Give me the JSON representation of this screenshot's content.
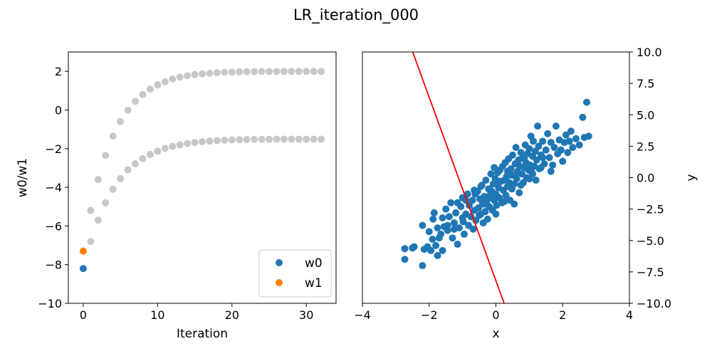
{
  "title": "LR_iteration_000",
  "colors": {
    "w0": "#1f77b4",
    "w1": "#ff7f0e",
    "history": "#c8c8c8",
    "fit_line": "#ff0000",
    "scatter": "#1f77b4"
  },
  "chart_data": [
    {
      "type": "scatter",
      "xlabel": "Iteration",
      "ylabel": "w0/w1",
      "xlim": [
        -2,
        34
      ],
      "ylim": [
        -10,
        3
      ],
      "xticks": [
        0,
        10,
        20,
        30
      ],
      "yticks": [
        -10,
        -8,
        -6,
        -4,
        -2,
        0,
        2
      ],
      "xtick_labels": [
        "0",
        "10",
        "20",
        "30"
      ],
      "ytick_labels": [
        "−10",
        "−8",
        "−6",
        "−4",
        "−2",
        "0",
        "2"
      ],
      "legend": {
        "placement": "lower-right",
        "entries": [
          "w0",
          "w1"
        ]
      },
      "grid": false,
      "series": [
        {
          "name": "w0",
          "style": "current",
          "x": [
            0
          ],
          "y": [
            -8.2
          ]
        },
        {
          "name": "w1",
          "style": "current",
          "x": [
            0
          ],
          "y": [
            -7.3
          ]
        },
        {
          "style": "history",
          "x": [
            1,
            2,
            3,
            4,
            5,
            6,
            7,
            8,
            9,
            10,
            11,
            12,
            13,
            14,
            15,
            16,
            17,
            18,
            19,
            20,
            21,
            22,
            23,
            24,
            25,
            26,
            27,
            28,
            29,
            30,
            31,
            32
          ],
          "y": [
            -5.2,
            -3.6,
            -2.35,
            -1.35,
            -0.6,
            -0.01,
            0.45,
            0.8,
            1.08,
            1.3,
            1.46,
            1.6,
            1.7,
            1.77,
            1.83,
            1.87,
            1.9,
            1.93,
            1.95,
            1.96,
            1.97,
            1.98,
            1.985,
            1.99,
            1.99,
            1.99,
            1.995,
            1.995,
            1.995,
            1.995,
            1.995,
            1.995
          ]
        },
        {
          "style": "history",
          "x": [
            1,
            2,
            3,
            4,
            5,
            6,
            7,
            8,
            9,
            10,
            11,
            12,
            13,
            14,
            15,
            16,
            17,
            18,
            19,
            20,
            21,
            22,
            23,
            24,
            25,
            26,
            27,
            28,
            29,
            30,
            31,
            32
          ],
          "y": [
            -6.8,
            -5.7,
            -4.8,
            -4.1,
            -3.55,
            -3.1,
            -2.78,
            -2.52,
            -2.3,
            -2.13,
            -1.99,
            -1.88,
            -1.8,
            -1.73,
            -1.68,
            -1.64,
            -1.61,
            -1.58,
            -1.56,
            -1.55,
            -1.54,
            -1.53,
            -1.525,
            -1.52,
            -1.515,
            -1.51,
            -1.51,
            -1.51,
            -1.51,
            -1.51,
            -1.51,
            -1.51
          ]
        }
      ]
    },
    {
      "type": "scatter",
      "xlabel": "x",
      "ylabel": "y",
      "xlim": [
        -4,
        4
      ],
      "ylim": [
        -10,
        10
      ],
      "xticks": [
        -4,
        -2,
        0,
        2,
        4
      ],
      "yticks": [
        -10,
        -7.5,
        -5,
        -2.5,
        0,
        2.5,
        5,
        7.5,
        10
      ],
      "xtick_labels": [
        "−4",
        "−2",
        "0",
        "2",
        "4"
      ],
      "ytick_labels": [
        "−10.0",
        "−7.5",
        "−5.0",
        "−2.5",
        "0.0",
        "2.5",
        "5.0",
        "7.5",
        "10.0"
      ],
      "y_axis_side": "right",
      "grid": false,
      "fit_line": {
        "slope": -7.3,
        "intercept": -8.2
      },
      "points": [
        [
          -2.73,
          -5.65
        ],
        [
          -2.73,
          -6.5
        ],
        [
          -2.5,
          -5.6
        ],
        [
          -2.45,
          -5.5
        ],
        [
          -2.2,
          -7.0
        ],
        [
          -2.15,
          -5.7
        ],
        [
          -2.2,
          -3.8
        ],
        [
          -2.05,
          -5.5
        ],
        [
          -1.95,
          -5.8
        ],
        [
          -1.9,
          -4.9
        ],
        [
          -1.88,
          -3.3
        ],
        [
          -1.85,
          -2.8
        ],
        [
          -1.8,
          -5.4
        ],
        [
          -1.75,
          -6.2
        ],
        [
          -1.7,
          -4.8
        ],
        [
          -1.65,
          -4.5
        ],
        [
          -1.6,
          -5.8
        ],
        [
          -1.55,
          -3.9
        ],
        [
          -1.5,
          -2.5
        ],
        [
          -1.45,
          -4.2
        ],
        [
          -1.4,
          -3.1
        ],
        [
          -1.35,
          -2.0
        ],
        [
          -1.3,
          -4.8
        ],
        [
          -1.25,
          -3.6
        ],
        [
          -1.2,
          -2.8
        ],
        [
          -1.15,
          -5.3
        ],
        [
          -1.1,
          -4.0
        ],
        [
          -1.05,
          -2.3
        ],
        [
          -1.0,
          -1.6
        ],
        [
          -0.98,
          -3.5
        ],
        [
          -0.95,
          -4.5
        ],
        [
          -0.9,
          -2.9
        ],
        [
          -0.85,
          -1.3
        ],
        [
          -0.82,
          -3.8
        ],
        [
          -0.8,
          -2.2
        ],
        [
          -0.75,
          -3.1
        ],
        [
          -0.7,
          -1.8
        ],
        [
          -0.68,
          -4.1
        ],
        [
          -0.65,
          -2.6
        ],
        [
          -0.6,
          -3.4
        ],
        [
          -0.55,
          -1.1
        ],
        [
          -0.52,
          -2.4
        ],
        [
          -0.5,
          -3.0
        ],
        [
          -0.48,
          -1.7
        ],
        [
          -0.45,
          -2.9
        ],
        [
          -0.42,
          -0.6
        ],
        [
          -0.4,
          -2.1
        ],
        [
          -0.38,
          -3.6
        ],
        [
          -0.35,
          -1.5
        ],
        [
          -0.32,
          -2.7
        ],
        [
          -0.3,
          -0.2
        ],
        [
          -0.28,
          -1.9
        ],
        [
          -0.25,
          -3.3
        ],
        [
          -0.22,
          -0.9
        ],
        [
          -0.2,
          -2.3
        ],
        [
          -0.18,
          -1.4
        ],
        [
          -0.15,
          0.3
        ],
        [
          -0.12,
          -1.1
        ],
        [
          -0.1,
          -2.6
        ],
        [
          -0.08,
          -0.5
        ],
        [
          -0.05,
          -1.8
        ],
        [
          -0.02,
          -0.1
        ],
        [
          0.0,
          -1.3
        ],
        [
          0.02,
          -2.2
        ],
        [
          0.05,
          0.4
        ],
        [
          0.08,
          -0.8
        ],
        [
          0.1,
          -1.6
        ],
        [
          0.12,
          0.6
        ],
        [
          0.15,
          -0.3
        ],
        [
          0.18,
          -2.0
        ],
        [
          0.2,
          0.9
        ],
        [
          0.22,
          -1.0
        ],
        [
          0.25,
          -0.2
        ],
        [
          0.28,
          1.2
        ],
        [
          0.3,
          -1.4
        ],
        [
          0.32,
          0.1
        ],
        [
          0.35,
          -0.7
        ],
        [
          0.38,
          1.5
        ],
        [
          0.4,
          -0.4
        ],
        [
          0.42,
          -1.8
        ],
        [
          0.45,
          0.7
        ],
        [
          0.48,
          -0.9
        ],
        [
          0.5,
          1.8
        ],
        [
          0.52,
          0.2
        ],
        [
          0.55,
          -0.5
        ],
        [
          0.58,
          1.1
        ],
        [
          0.6,
          2.4
        ],
        [
          0.62,
          -0.1
        ],
        [
          0.65,
          0.5
        ],
        [
          0.68,
          1.4
        ],
        [
          0.7,
          -1.2
        ],
        [
          0.72,
          0.9
        ],
        [
          0.75,
          2.0
        ],
        [
          0.78,
          0.3
        ],
        [
          0.8,
          1.6
        ],
        [
          0.82,
          -0.4
        ],
        [
          0.85,
          0.8
        ],
        [
          0.88,
          2.6
        ],
        [
          0.9,
          1.2
        ],
        [
          0.92,
          0.0
        ],
        [
          0.95,
          1.9
        ],
        [
          0.98,
          0.6
        ],
        [
          1.0,
          2.3
        ],
        [
          1.02,
          1.0
        ],
        [
          1.05,
          3.3
        ],
        [
          1.08,
          0.4
        ],
        [
          1.1,
          1.7
        ],
        [
          1.12,
          2.9
        ],
        [
          1.15,
          0.9
        ],
        [
          1.18,
          2.1
        ],
        [
          1.2,
          -0.2
        ],
        [
          1.22,
          1.4
        ],
        [
          1.25,
          4.1
        ],
        [
          1.28,
          2.5
        ],
        [
          1.3,
          0.7
        ],
        [
          1.35,
          1.8
        ],
        [
          1.4,
          2.9
        ],
        [
          1.45,
          1.1
        ],
        [
          1.5,
          2.2
        ],
        [
          1.55,
          3.5
        ],
        [
          1.6,
          1.6
        ],
        [
          1.65,
          2.8
        ],
        [
          1.7,
          1.0
        ],
        [
          1.75,
          2.4
        ],
        [
          1.8,
          4.1
        ],
        [
          1.85,
          1.9
        ],
        [
          1.9,
          3.0
        ],
        [
          1.95,
          2.2
        ],
        [
          2.0,
          1.3
        ],
        [
          2.05,
          2.8
        ],
        [
          2.1,
          3.4
        ],
        [
          2.15,
          2.0
        ],
        [
          2.2,
          2.9
        ],
        [
          2.25,
          3.7
        ],
        [
          2.3,
          2.4
        ],
        [
          2.4,
          3.1
        ],
        [
          2.5,
          2.6
        ],
        [
          2.6,
          4.8
        ],
        [
          2.65,
          3.2
        ],
        [
          2.72,
          6.0
        ],
        [
          2.78,
          3.3
        ],
        [
          -1.45,
          -3.8
        ],
        [
          -1.25,
          -4.1
        ],
        [
          -1.0,
          -3.2
        ],
        [
          -0.9,
          -1.8
        ],
        [
          -0.62,
          -1.3
        ],
        [
          -0.45,
          -0.7
        ],
        [
          -0.2,
          -0.9
        ],
        [
          0.1,
          -0.3
        ],
        [
          0.35,
          0.5
        ],
        [
          0.6,
          0.2
        ],
        [
          0.85,
          1.5
        ],
        [
          1.1,
          0.3
        ],
        [
          1.35,
          0.8
        ],
        [
          -0.15,
          -1.6
        ],
        [
          0.25,
          -1.9
        ],
        [
          0.55,
          -2.1
        ],
        [
          0.0,
          -2.9
        ],
        [
          -0.35,
          -2.1
        ],
        [
          -0.65,
          -1.0
        ],
        [
          -1.15,
          -2.0
        ],
        [
          -1.6,
          -3.2
        ],
        [
          -1.75,
          -4.0
        ],
        [
          -2.0,
          -4.3
        ],
        [
          0.75,
          -0.6
        ],
        [
          1.0,
          -0.1
        ],
        [
          1.4,
          1.6
        ],
        [
          1.65,
          0.5
        ],
        [
          0.45,
          0.2
        ],
        [
          -0.05,
          0.8
        ]
      ]
    }
  ]
}
